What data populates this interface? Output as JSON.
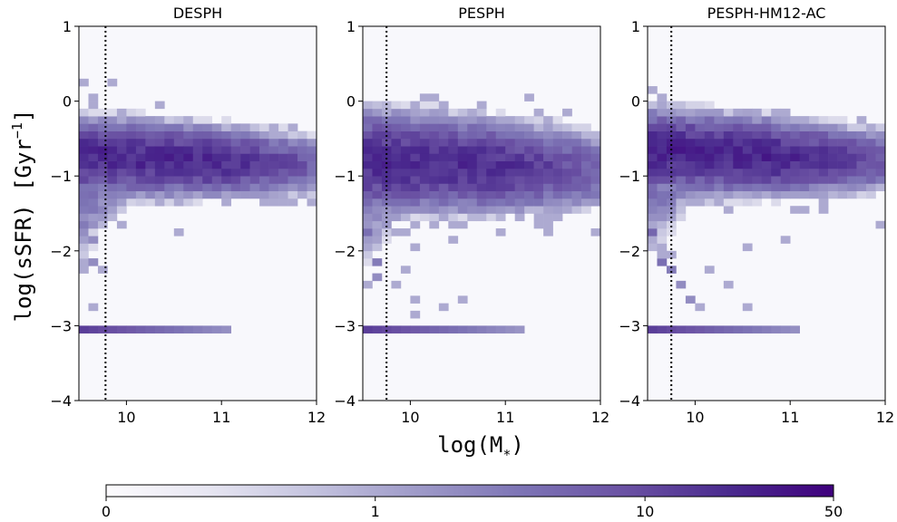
{
  "figure": {
    "ylabel_main": "log(sSFR) [Gyr",
    "ylabel_sup": "−1",
    "ylabel_end": "]",
    "xlabel": "log(M",
    "xlabel_sub": "∗",
    "xlabel_end": ")"
  },
  "chart_data": [
    {
      "type": "heatmap",
      "title": "DESPH",
      "xlim": [
        9.5,
        12
      ],
      "ylim": [
        -4,
        1
      ],
      "x_ticks": [
        "10",
        "11",
        "12"
      ],
      "y_ticks": [
        "1",
        "0",
        "−1",
        "−2",
        "−3",
        "−4"
      ],
      "x_tick_values": [
        10,
        11,
        12
      ],
      "y_tick_values": [
        1,
        0,
        -1,
        -2,
        -3,
        -4
      ],
      "vline_x": 9.78,
      "bin_width": 0.1,
      "bin_height": 0.1,
      "main_band": {
        "x_max": 12.0,
        "center_y": -0.78,
        "width": 0.42,
        "spread": 0.04,
        "peak": 22
      },
      "scatter_bins": [
        [
          9.55,
          -1.6,
          3
        ],
        [
          9.65,
          -1.9,
          2
        ],
        [
          9.55,
          -2.2,
          1
        ],
        [
          9.65,
          -2.1,
          2
        ],
        [
          9.75,
          -2.2,
          1
        ],
        [
          9.6,
          0.3,
          1
        ],
        [
          9.8,
          0.2,
          1
        ],
        [
          9.7,
          0.0,
          1
        ],
        [
          10.3,
          -1.4,
          1
        ],
        [
          10.6,
          -1.8,
          1
        ],
        [
          10.9,
          -1.3,
          1
        ],
        [
          11.2,
          -1.3,
          1
        ],
        [
          11.4,
          -1.4,
          1
        ],
        [
          10.1,
          -1.2,
          1
        ],
        [
          11.7,
          -1.3,
          1
        ],
        [
          11.9,
          -1.4,
          1
        ],
        [
          11.95,
          -0.7,
          1
        ]
      ],
      "floor_y": -3.05,
      "floor_x_max": 11.1
    },
    {
      "type": "heatmap",
      "title": "PESPH",
      "xlim": [
        9.5,
        12
      ],
      "ylim": [
        -4,
        1
      ],
      "x_ticks": [
        "10",
        "11",
        "12"
      ],
      "y_ticks": [
        "1",
        "0",
        "−1",
        "−2",
        "−3",
        "−4"
      ],
      "x_tick_values": [
        10,
        11,
        12
      ],
      "y_tick_values": [
        1,
        0,
        -1,
        -2,
        -3,
        -4
      ],
      "vline_x": 9.75,
      "bin_width": 0.1,
      "bin_height": 0.1,
      "main_band": {
        "x_max": 12.0,
        "center_y": -0.85,
        "width": 0.55,
        "spread": 0.05,
        "peak": 20
      },
      "scatter_bins": [
        [
          9.6,
          -1.8,
          4
        ],
        [
          9.7,
          -2.1,
          3
        ],
        [
          9.65,
          -2.4,
          2
        ],
        [
          9.8,
          -2.5,
          1
        ],
        [
          9.9,
          -2.3,
          1
        ],
        [
          10.1,
          -2.6,
          1
        ],
        [
          10.3,
          -2.7,
          1
        ],
        [
          10.05,
          -2.9,
          1
        ],
        [
          10.5,
          -2.6,
          1
        ],
        [
          10.1,
          -2.0,
          1
        ],
        [
          10.4,
          -1.9,
          1
        ],
        [
          10.6,
          -1.6,
          1
        ],
        [
          10.9,
          -1.8,
          1
        ],
        [
          11.3,
          -1.6,
          1
        ],
        [
          11.5,
          -1.5,
          1
        ],
        [
          11.9,
          -1.8,
          1
        ],
        [
          10.0,
          -0.1,
          1
        ],
        [
          10.2,
          0.0,
          1
        ],
        [
          10.7,
          -0.3,
          1
        ],
        [
          11.4,
          -0.3,
          1
        ]
      ],
      "floor_y": -3.05,
      "floor_x_max": 11.2
    },
    {
      "type": "heatmap",
      "title": "PESPH-HM12-AC",
      "xlim": [
        9.5,
        12
      ],
      "ylim": [
        -4,
        1
      ],
      "x_ticks": [
        "10",
        "11",
        "12"
      ],
      "y_ticks": [
        "1",
        "0",
        "−1",
        "−2",
        "−3",
        "−4"
      ],
      "x_tick_values": [
        10,
        11,
        12
      ],
      "y_tick_values": [
        1,
        0,
        -1,
        -2,
        -3,
        -4
      ],
      "vline_x": 9.75,
      "bin_width": 0.1,
      "bin_height": 0.1,
      "main_band": {
        "x_max": 12.0,
        "center_y": -0.72,
        "width": 0.45,
        "spread": 0.06,
        "peak": 24
      },
      "scatter_bins": [
        [
          9.55,
          -1.8,
          5
        ],
        [
          9.65,
          -2.1,
          4
        ],
        [
          9.75,
          -2.3,
          3
        ],
        [
          9.85,
          -2.5,
          2
        ],
        [
          9.95,
          -2.6,
          2
        ],
        [
          10.1,
          -2.7,
          1
        ],
        [
          10.3,
          -2.5,
          1
        ],
        [
          10.5,
          -2.8,
          1
        ],
        [
          10.2,
          -2.2,
          1
        ],
        [
          10.6,
          -2.0,
          1
        ],
        [
          10.9,
          -1.9,
          1
        ],
        [
          11.1,
          -1.5,
          1
        ],
        [
          11.3,
          -1.4,
          1
        ],
        [
          11.6,
          -1.2,
          1
        ],
        [
          11.9,
          -1.6,
          1
        ],
        [
          9.55,
          0.15,
          1
        ],
        [
          9.7,
          0.0,
          1
        ],
        [
          10.8,
          -0.15,
          1
        ],
        [
          11.2,
          -0.2,
          1
        ],
        [
          11.5,
          -0.5,
          1
        ]
      ],
      "floor_y": -3.05,
      "floor_x_max": 11.1
    }
  ],
  "colorbar": {
    "ticks": [
      "0",
      "1",
      "10",
      "50"
    ],
    "tick_values": [
      0,
      1,
      10,
      50
    ],
    "colors": [
      "#fcfbfd",
      "#e6e5f1",
      "#c3c2de",
      "#9e9ac8",
      "#7d74b5",
      "#6a51a3",
      "#4a2a8e",
      "#3f007d"
    ]
  },
  "style": {
    "background_bin": "#f8f8fc",
    "vline_color": "#000000",
    "axis_color": "#000000"
  }
}
